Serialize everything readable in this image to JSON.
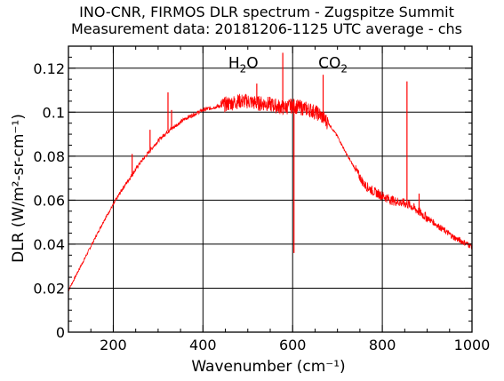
{
  "chart_data": {
    "type": "line",
    "title": "INO-CNR, FIRMOS DLR spectrum - Zugspitze Summit",
    "subtitle": "Measurement data: 20181206-1125 UTC average - chs",
    "xlabel": "Wavenumber (cm⁻¹)",
    "ylabel": "DLR (W/m²-sr-cm⁻¹)",
    "xlim": [
      100,
      1000
    ],
    "ylim": [
      0,
      0.13
    ],
    "xticks": [
      200,
      400,
      600,
      800,
      1000
    ],
    "yticks": [
      0,
      0.02,
      0.04,
      0.06,
      0.08,
      0.1,
      0.12
    ],
    "xtick_labels": [
      "200",
      "400",
      "600",
      "800",
      "1000"
    ],
    "ytick_labels": [
      "0",
      "0.02",
      "0.04",
      "0.06",
      "0.08",
      "0.1",
      "0.12"
    ],
    "grid": true,
    "annotations": [
      {
        "base": "H",
        "sub": "2",
        "tail": "O",
        "x": 490,
        "y": 0.1225
      },
      {
        "base": "CO",
        "sub": "2",
        "tail": "",
        "x": 690,
        "y": 0.1225
      }
    ],
    "series": [
      {
        "color": "#ff0000",
        "x": [
          100,
          120,
          140,
          160,
          180,
          200,
          220,
          240,
          260,
          280,
          300,
          320,
          340,
          360,
          380,
          400,
          420,
          440,
          460,
          480,
          500,
          520,
          540,
          560,
          580,
          600,
          620,
          640,
          660,
          680,
          700,
          720,
          740,
          760,
          780,
          800,
          820,
          840,
          860,
          880,
          900,
          920,
          940,
          960,
          980,
          1000
        ],
        "y": [
          0.019,
          0.027,
          0.035,
          0.043,
          0.051,
          0.058,
          0.065,
          0.071,
          0.077,
          0.082,
          0.087,
          0.091,
          0.094,
          0.097,
          0.099,
          0.101,
          0.102,
          0.103,
          0.104,
          0.105,
          0.105,
          0.104,
          0.104,
          0.103,
          0.102,
          0.103,
          0.102,
          0.101,
          0.099,
          0.095,
          0.089,
          0.081,
          0.074,
          0.067,
          0.064,
          0.062,
          0.06,
          0.059,
          0.058,
          0.055,
          0.052,
          0.049,
          0.046,
          0.043,
          0.041,
          0.039
        ]
      }
    ],
    "spikes": [
      {
        "x": 322,
        "y": 0.109
      },
      {
        "x": 330,
        "y": 0.101
      },
      {
        "x": 282,
        "y": 0.092
      },
      {
        "x": 242,
        "y": 0.081
      },
      {
        "x": 520,
        "y": 0.113
      },
      {
        "x": 578,
        "y": 0.127
      },
      {
        "x": 603,
        "y": 0.036
      },
      {
        "x": 668,
        "y": 0.117
      },
      {
        "x": 855,
        "y": 0.114
      },
      {
        "x": 882,
        "y": 0.063
      }
    ]
  }
}
